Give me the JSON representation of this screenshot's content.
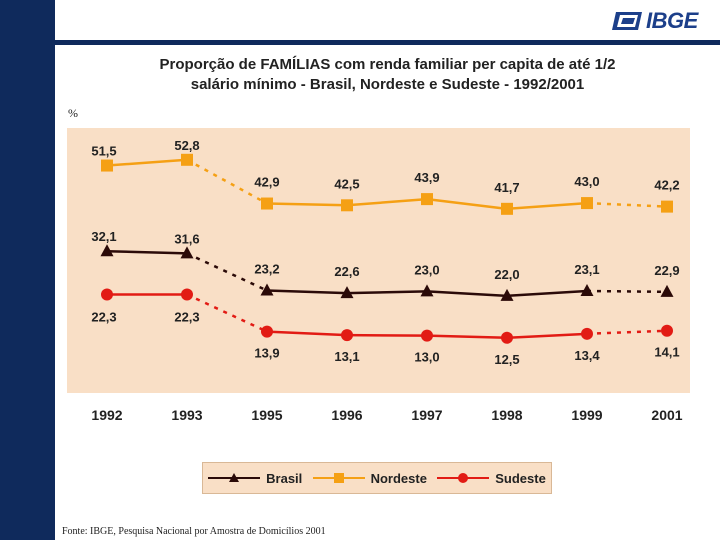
{
  "header": {
    "logo_text": "IBGE"
  },
  "chart_data": {
    "type": "line",
    "title_line1": "Proporção de FAMÍLIAS com renda familiar per capita de até 1/2",
    "title_line2": "salário mínimo - Brasil, Nordeste e Sudeste - 1992/2001",
    "ylabel": "%",
    "categories": [
      "1992",
      "1993",
      "1995",
      "1996",
      "1997",
      "1998",
      "1999",
      "2001"
    ],
    "gap_after_index": 1,
    "dashed_last_segment": true,
    "ylim": [
      0,
      60
    ],
    "legend_position": "bottom",
    "series": [
      {
        "name": "Brasil",
        "values": [
          32.1,
          31.6,
          23.2,
          22.6,
          23.0,
          22.0,
          23.1,
          22.9
        ],
        "labels": [
          "32,1",
          "31,6",
          "23,2",
          "22,6",
          "23,0",
          "22,0",
          "23,1",
          "22,9"
        ],
        "color": "#2b0a08",
        "marker": "triangle"
      },
      {
        "name": "Nordeste",
        "values": [
          51.5,
          52.8,
          42.9,
          42.5,
          43.9,
          41.7,
          43.0,
          42.2
        ],
        "labels": [
          "51,5",
          "52,8",
          "42,9",
          "42,5",
          "43,9",
          "41,7",
          "43,0",
          "42,2"
        ],
        "color": "#f5a014",
        "marker": "square"
      },
      {
        "name": "Sudeste",
        "values": [
          22.3,
          22.3,
          13.9,
          13.1,
          13.0,
          12.5,
          13.4,
          14.1
        ],
        "labels": [
          "22,3",
          "22,3",
          "13,9",
          "13,1",
          "13,0",
          "12,5",
          "13,4",
          "14,1"
        ],
        "color": "#e21b14",
        "marker": "circle"
      }
    ]
  },
  "source": "Fonte: IBGE, Pesquisa Nacional por Amostra de Domicílios 2001",
  "colors": {
    "sidebar": "#0f2a5c",
    "plot_bg": "#f9dfc6",
    "legend_bg": "#f9dfc6",
    "logo": "#1c3f8a"
  }
}
